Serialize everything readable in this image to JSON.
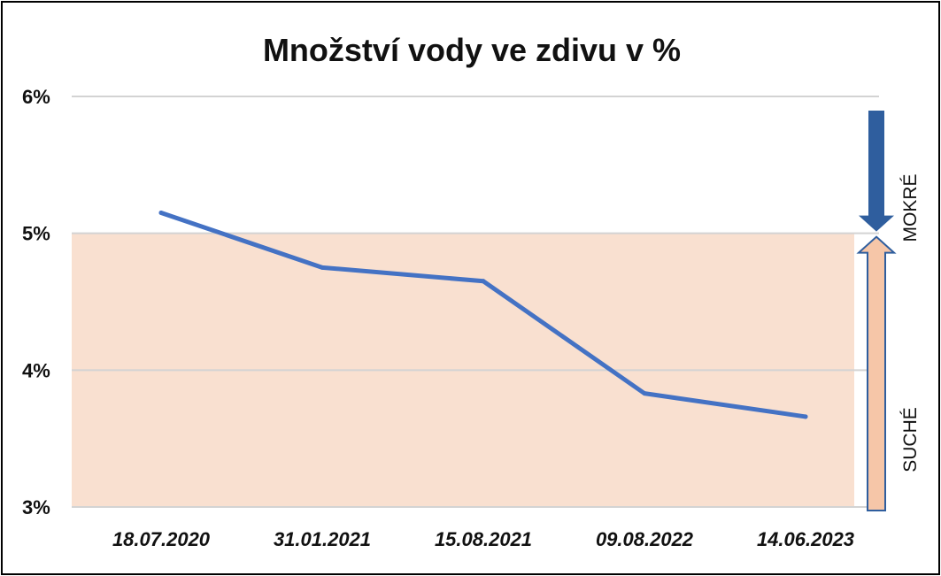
{
  "chart_data": {
    "type": "line",
    "title": "Množství vody ve zdivu v %",
    "xlabel": "",
    "ylabel": "",
    "categories": [
      "18.07.2020",
      "31.01.2021",
      "15.08.2021",
      "09.08.2022",
      "14.06.2023"
    ],
    "series": [
      {
        "values": [
          5.15,
          4.75,
          4.65,
          3.83,
          3.66
        ],
        "color": "#4472C4"
      }
    ],
    "ylim": [
      3,
      6
    ],
    "yticks": [
      3,
      4,
      5,
      6
    ],
    "ytick_labels": [
      "3%",
      "4%",
      "5%",
      "6%"
    ],
    "grid": true,
    "legend": "none",
    "threshold": {
      "value": 5,
      "band_color": "#F9E0D0"
    },
    "zones": {
      "wet_label": "MOKRÉ",
      "dry_label": "SUCHÉ",
      "wet_color": "#2F5E9E",
      "dry_color": "#F6C6A8",
      "dry_outline": "#2F5E9E"
    }
  }
}
